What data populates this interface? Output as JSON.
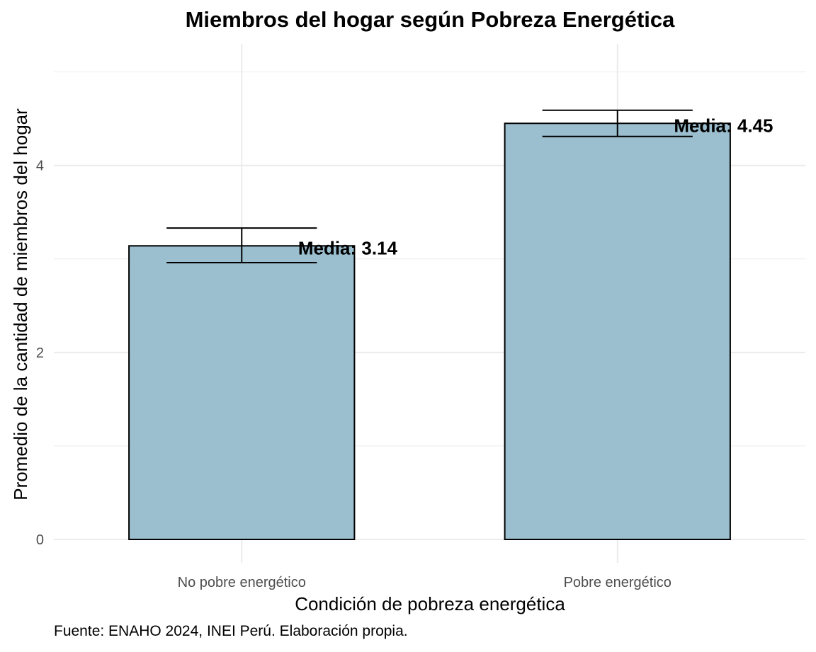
{
  "chart_data": {
    "type": "bar",
    "title": "Miembros del hogar según Pobreza Energética",
    "xlabel": "Condición de pobreza energética",
    "ylabel": "Promedio de la cantidad de miembros del hogar",
    "caption": "Fuente: ENAHO 2024, INEI Perú. Elaboración propia.",
    "categories": [
      "No pobre energético",
      "Pobre energético"
    ],
    "values": [
      3.14,
      4.45
    ],
    "error_low": [
      2.96,
      4.31
    ],
    "error_high": [
      3.33,
      4.59
    ],
    "data_labels": [
      "Media: 3.14",
      "Media: 4.45"
    ],
    "yticks": [
      0,
      2,
      4
    ],
    "ylim": [
      -0.25,
      5.3
    ],
    "grid": true,
    "bar_color": "#9bbfcf",
    "bar_edge_color": "#000000",
    "grid_color": "#ebebeb"
  }
}
